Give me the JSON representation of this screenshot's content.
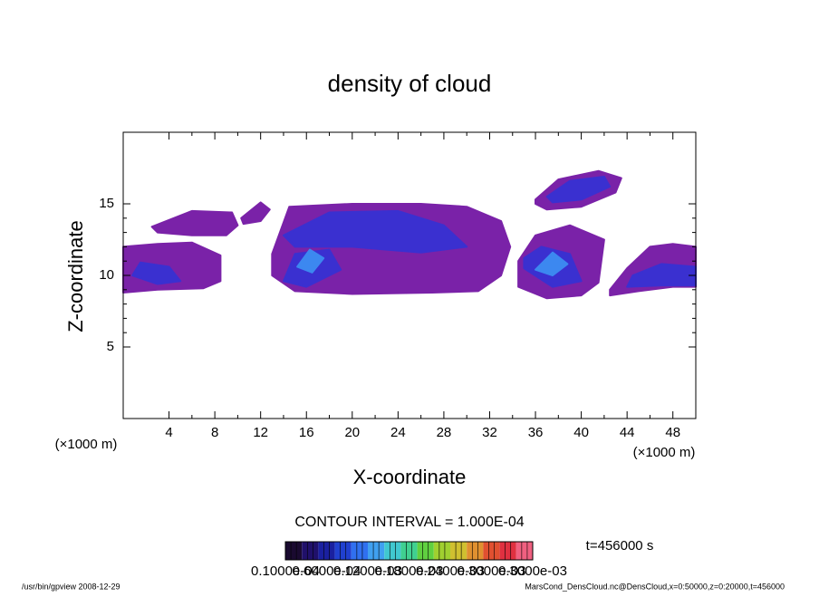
{
  "chart_data": {
    "type": "contour",
    "title": "density of cloud",
    "x_label": "X-coordinate",
    "y_label": "Z-coordinate",
    "x_unit_left": "(×1000 m)",
    "x_unit_right": "(×1000 m)",
    "xlim": [
      0,
      50
    ],
    "ylim": [
      0,
      20
    ],
    "xticks": [
      4,
      8,
      12,
      16,
      20,
      24,
      28,
      32,
      36,
      40,
      44,
      48
    ],
    "yticks": [
      5,
      10,
      15
    ],
    "contour_interval": "CONTOUR INTERVAL = 1.000E-04",
    "time_label": "t=456000 s",
    "colorbar_colors": [
      "#1a0a30",
      "#20106a",
      "#1a20a0",
      "#2040d0",
      "#3070f0",
      "#40a0f0",
      "#40c8d0",
      "#40d090",
      "#60d040",
      "#a0d030",
      "#d0c030",
      "#e09030",
      "#e05030",
      "#e03040",
      "#f06080"
    ],
    "colorbar_labels": [
      "0.1000e-04",
      "0.6000e-04",
      "0.1200e-03",
      "0.1800e-03",
      "0.2400e-03",
      "0.3000e-03",
      "0.3000e-03"
    ],
    "footer_left": "/usr/bin/gpview   2008-12-29",
    "footer_right": "MarsCond_DensCloud.nc@DensCloud,x=0:50000,z=0:20000,t=456000",
    "regions": [
      {
        "value": 0.0001,
        "color": "#7a22a8",
        "x": [
          0,
          3,
          7,
          8.5,
          8.5,
          6,
          3,
          0
        ],
        "z": [
          8.8,
          9,
          9.1,
          9.6,
          11.4,
          12.3,
          12.2,
          12
        ]
      },
      {
        "value": 0.0001,
        "color": "#7a22a8",
        "x": [
          13,
          14.5,
          20,
          26,
          30,
          33,
          33.8,
          33,
          31,
          27,
          20,
          15,
          13
        ],
        "z": [
          11.5,
          14.8,
          15,
          15,
          14.8,
          13.8,
          12,
          10,
          8.9,
          8.8,
          8.7,
          8.9,
          10
        ]
      },
      {
        "value": 0.0001,
        "color": "#7a22a8",
        "x": [
          2.5,
          6,
          9.5,
          10,
          9,
          6,
          3
        ],
        "z": [
          13.4,
          14.5,
          14.4,
          13.5,
          12.8,
          12.8,
          13
        ]
      },
      {
        "value": 0.0001,
        "color": "#7a22a8",
        "x": [
          10.3,
          12,
          12.8,
          12,
          10.5
        ],
        "z": [
          14,
          15.1,
          14.6,
          13.8,
          13.6
        ]
      },
      {
        "value": 0.0001,
        "color": "#7a22a8",
        "x": [
          34.5,
          37,
          40,
          41.5,
          42,
          39,
          36,
          34.5
        ],
        "z": [
          9.2,
          8.4,
          8.6,
          9.5,
          12.5,
          13.5,
          12.8,
          11
        ]
      },
      {
        "value": 0.0001,
        "color": "#7a22a8",
        "x": [
          36,
          38,
          41.5,
          43.5,
          43,
          40,
          37,
          36
        ],
        "z": [
          15.3,
          16.7,
          17.3,
          16.8,
          15.8,
          14.8,
          14.6,
          15
        ]
      },
      {
        "value": 0.0001,
        "color": "#7a22a8",
        "x": [
          42.5,
          45,
          48,
          50,
          50,
          48,
          46,
          44,
          42.5
        ],
        "z": [
          8.6,
          8.9,
          9.2,
          9.2,
          12,
          12.2,
          12,
          10.5,
          9
        ]
      },
      {
        "value": 0.0002,
        "color": "#3a30d0",
        "x": [
          0.8,
          3,
          5,
          4,
          1.5
        ],
        "z": [
          10,
          9.4,
          9.6,
          10.6,
          10.9
        ]
      },
      {
        "value": 0.0002,
        "color": "#3a30d0",
        "x": [
          14,
          18,
          24,
          28,
          30,
          26,
          20,
          15
        ],
        "z": [
          12.8,
          14.4,
          14.5,
          13.5,
          12,
          11.6,
          12,
          12
        ]
      },
      {
        "value": 0.0002,
        "color": "#3a30d0",
        "x": [
          14,
          16,
          19,
          18,
          15
        ],
        "z": [
          9.6,
          9.2,
          10.4,
          11.8,
          11.5
        ]
      },
      {
        "value": 0.0002,
        "color": "#3a30d0",
        "x": [
          35,
          37.5,
          40,
          39,
          36.5,
          35
        ],
        "z": [
          10.5,
          9.2,
          9.6,
          11.5,
          12,
          11.2
        ]
      },
      {
        "value": 0.0002,
        "color": "#3a30d0",
        "x": [
          37,
          39,
          42,
          42.5,
          40,
          37.5
        ],
        "z": [
          15.5,
          16.6,
          16.9,
          16.2,
          15.3,
          15.1
        ]
      },
      {
        "value": 0.0002,
        "color": "#3a30d0",
        "x": [
          44,
          47,
          50,
          50,
          47,
          44.5
        ],
        "z": [
          9.2,
          9.3,
          9.3,
          10.6,
          10.8,
          10
        ]
      },
      {
        "value": 0.0003,
        "color": "#3c88f0",
        "x": [
          15.2,
          16.5,
          17.5,
          16.3
        ],
        "z": [
          10.6,
          10.2,
          11.2,
          11.8
        ]
      },
      {
        "value": 0.0003,
        "color": "#3c88f0",
        "x": [
          36,
          37.5,
          38.8,
          37.5
        ],
        "z": [
          10.4,
          10,
          10.8,
          11.6
        ]
      }
    ]
  }
}
